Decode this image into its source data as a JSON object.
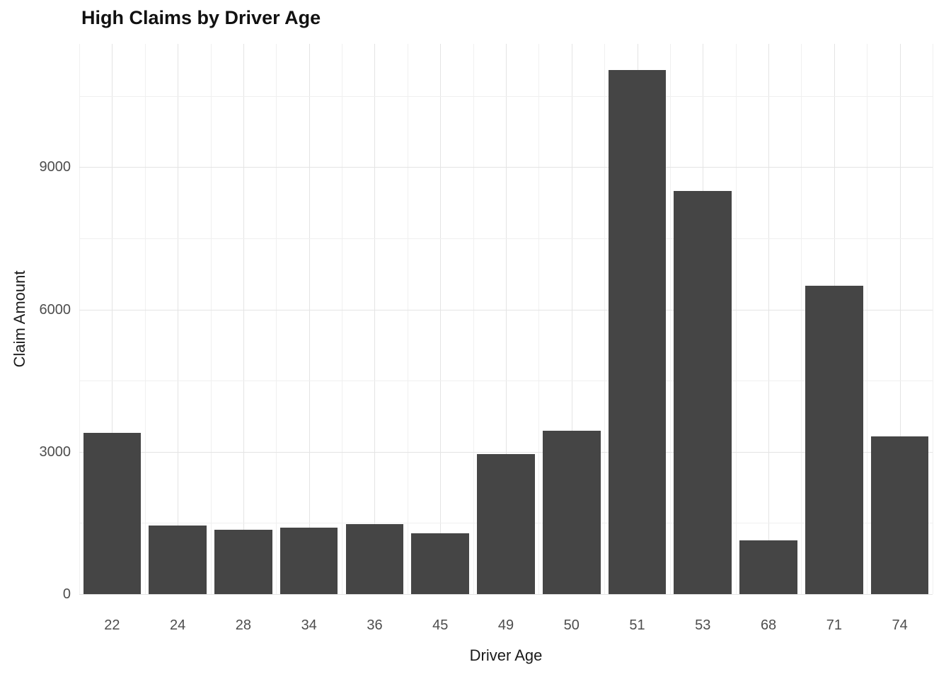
{
  "chart_data": {
    "type": "bar",
    "title": "High Claims by Driver Age",
    "xlabel": "Driver Age",
    "ylabel": "Claim Amount",
    "categories": [
      "22",
      "24",
      "28",
      "34",
      "36",
      "45",
      "49",
      "50",
      "51",
      "53",
      "68",
      "71",
      "74"
    ],
    "values": [
      3400,
      1450,
      1360,
      1400,
      1480,
      1280,
      2950,
      3450,
      11050,
      8500,
      1130,
      6500,
      3320
    ],
    "yticks": [
      0,
      3000,
      6000,
      9000
    ],
    "ylim": [
      0,
      11600
    ],
    "grid": true,
    "legend": "none",
    "bar_color": "#454545",
    "grid_major_color": "#e4e4e4",
    "grid_minor_color": "#f0f0f0",
    "tick_label_color": "#4d4d4d",
    "text_color": "#1a1a1a",
    "background": "#ffffff"
  }
}
